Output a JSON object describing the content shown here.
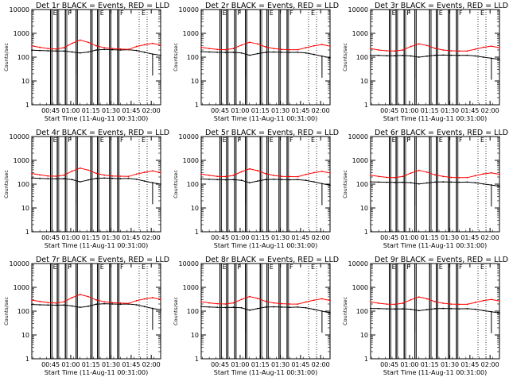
{
  "window": {
    "title": ""
  },
  "colors": {
    "events": "#000000",
    "lld": "#ff0000",
    "axes": "#000000",
    "background": "#ffffff"
  },
  "shared": {
    "ylabel": "Counts/sec",
    "xlabel": "Start Time (11-Aug-11 00:31:00)",
    "xtick_labels": [
      "00:45",
      "01:00",
      "01:15",
      "01:30",
      "01:45",
      "02:00"
    ],
    "ytick_labels": [
      "1",
      "10",
      "100",
      "1000",
      "10000"
    ],
    "flag_letters": [
      "E",
      "F"
    ]
  },
  "chart_data": [
    {
      "type": "line",
      "title": "Det 1r BLACK = Events, RED = LLD",
      "xlabel": "Start Time (11-Aug-11 00:31:00)",
      "ylabel": "Counts/sec",
      "yscale": "log",
      "ylim": [
        1,
        10000
      ],
      "xlim_minutes_after_start": [
        0,
        96
      ],
      "x_minutes_after_start": [
        0,
        6,
        12,
        18,
        24,
        30,
        36,
        42,
        48,
        54,
        60,
        66,
        72,
        78,
        84,
        90,
        96
      ],
      "series": [
        {
          "name": "Events",
          "color": "#000000",
          "values": [
            195,
            190,
            185,
            180,
            180,
            165,
            150,
            165,
            200,
            210,
            205,
            200,
            205,
            190,
            160,
            135,
            120
          ]
        },
        {
          "name": "LLD",
          "color": "#ff0000",
          "values": [
            300,
            260,
            230,
            220,
            250,
            380,
            520,
            420,
            300,
            250,
            230,
            220,
            210,
            280,
            330,
            380,
            320
          ]
        }
      ],
      "vertical_markers_minutes": [
        14,
        19,
        25,
        33,
        44,
        49,
        58,
        64,
        80
      ]
    },
    {
      "type": "line",
      "title": "Det 2r BLACK = Events, RED = LLD",
      "xlabel": "Start Time (11-Aug-11 00:31:00)",
      "ylabel": "Counts/sec",
      "yscale": "log",
      "ylim": [
        1,
        10000
      ],
      "xlim_minutes_after_start": [
        0,
        96
      ],
      "x_minutes_after_start": [
        0,
        6,
        12,
        18,
        24,
        30,
        36,
        42,
        48,
        54,
        60,
        66,
        72,
        78,
        84,
        90,
        96
      ],
      "series": [
        {
          "name": "Events",
          "color": "#000000",
          "values": [
            170,
            165,
            160,
            158,
            160,
            150,
            120,
            140,
            160,
            165,
            160,
            158,
            160,
            150,
            130,
            110,
            95
          ]
        },
        {
          "name": "LLD",
          "color": "#ff0000",
          "values": [
            260,
            230,
            210,
            205,
            230,
            320,
            420,
            360,
            270,
            230,
            210,
            205,
            205,
            250,
            300,
            340,
            290
          ]
        }
      ],
      "vertical_markers_minutes": [
        14,
        19,
        25,
        33,
        44,
        49,
        58,
        64,
        80
      ]
    },
    {
      "type": "line",
      "title": "Det 3r BLACK = Events, RED = LLD",
      "xlabel": "Start Time (11-Aug-11 00:31:00)",
      "ylabel": "Counts/sec",
      "yscale": "log",
      "ylim": [
        1,
        10000
      ],
      "xlim_minutes_after_start": [
        0,
        96
      ],
      "x_minutes_after_start": [
        0,
        6,
        12,
        18,
        24,
        30,
        36,
        42,
        48,
        54,
        60,
        66,
        72,
        78,
        84,
        90,
        96
      ],
      "series": [
        {
          "name": "Events",
          "color": "#000000",
          "values": [
            120,
            118,
            115,
            115,
            118,
            112,
            100,
            110,
            120,
            122,
            120,
            118,
            120,
            112,
            100,
            90,
            80
          ]
        },
        {
          "name": "LLD",
          "color": "#ff0000",
          "values": [
            230,
            200,
            185,
            180,
            200,
            280,
            360,
            310,
            235,
            200,
            185,
            180,
            180,
            215,
            260,
            290,
            250
          ]
        }
      ],
      "vertical_markers_minutes": [
        14,
        19,
        25,
        33,
        44,
        49,
        58,
        64,
        80
      ]
    },
    {
      "type": "line",
      "title": "Det 4r BLACK = Events, RED = LLD",
      "xlabel": "Start Time (11-Aug-11 00:31:00)",
      "ylabel": "Counts/sec",
      "yscale": "log",
      "ylim": [
        1,
        10000
      ],
      "xlim_minutes_after_start": [
        0,
        96
      ],
      "x_minutes_after_start": [
        0,
        6,
        12,
        18,
        24,
        30,
        36,
        42,
        48,
        54,
        60,
        66,
        72,
        78,
        84,
        90,
        96
      ],
      "series": [
        {
          "name": "Events",
          "color": "#000000",
          "values": [
            180,
            175,
            170,
            168,
            170,
            155,
            125,
            150,
            175,
            180,
            175,
            170,
            175,
            160,
            135,
            115,
            100
          ]
        },
        {
          "name": "LLD",
          "color": "#ff0000",
          "values": [
            280,
            245,
            220,
            215,
            240,
            350,
            470,
            390,
            285,
            240,
            220,
            215,
            210,
            265,
            315,
            360,
            305
          ]
        }
      ],
      "vertical_markers_minutes": [
        14,
        19,
        25,
        33,
        44,
        49,
        58,
        64,
        80
      ]
    },
    {
      "type": "line",
      "title": "Det 5r BLACK = Events, RED = LLD",
      "xlabel": "Start Time (11-Aug-11 00:31:00)",
      "ylabel": "Counts/sec",
      "yscale": "log",
      "ylim": [
        1,
        10000
      ],
      "xlim_minutes_after_start": [
        0,
        96
      ],
      "x_minutes_after_start": [
        0,
        6,
        12,
        18,
        24,
        30,
        36,
        42,
        48,
        54,
        60,
        66,
        72,
        78,
        84,
        90,
        96
      ],
      "series": [
        {
          "name": "Events",
          "color": "#000000",
          "values": [
            165,
            160,
            155,
            152,
            155,
            145,
            115,
            135,
            155,
            160,
            155,
            152,
            155,
            145,
            125,
            105,
            90
          ]
        },
        {
          "name": "LLD",
          "color": "#ff0000",
          "values": [
            265,
            235,
            212,
            208,
            232,
            330,
            440,
            370,
            275,
            232,
            212,
            208,
            206,
            255,
            305,
            345,
            295
          ]
        }
      ],
      "vertical_markers_minutes": [
        14,
        19,
        25,
        33,
        44,
        49,
        58,
        64,
        80
      ]
    },
    {
      "type": "line",
      "title": "Det 6r BLACK = Events, RED = LLD",
      "xlabel": "Start Time (11-Aug-11 00:31:00)",
      "ylabel": "Counts/sec",
      "yscale": "log",
      "ylim": [
        1,
        10000
      ],
      "xlim_minutes_after_start": [
        0,
        96
      ],
      "x_minutes_after_start": [
        0,
        6,
        12,
        18,
        24,
        30,
        36,
        42,
        48,
        54,
        60,
        66,
        72,
        78,
        84,
        90,
        96
      ],
      "series": [
        {
          "name": "Events",
          "color": "#000000",
          "values": [
            125,
            122,
            120,
            118,
            120,
            115,
            102,
            112,
            122,
            125,
            122,
            120,
            122,
            115,
            102,
            92,
            82
          ]
        },
        {
          "name": "LLD",
          "color": "#ff0000",
          "values": [
            240,
            210,
            192,
            188,
            210,
            290,
            380,
            320,
            245,
            210,
            192,
            188,
            188,
            225,
            270,
            300,
            260
          ]
        }
      ],
      "vertical_markers_minutes": [
        14,
        19,
        25,
        33,
        44,
        49,
        58,
        64,
        80
      ]
    },
    {
      "type": "line",
      "title": "Det 7r BLACK = Events, RED = LLD",
      "xlabel": "Start Time (11-Aug-11 00:31:00)",
      "ylabel": "Counts/sec",
      "yscale": "log",
      "ylim": [
        1,
        10000
      ],
      "xlim_minutes_after_start": [
        0,
        96
      ],
      "x_minutes_after_start": [
        0,
        6,
        12,
        18,
        24,
        30,
        36,
        42,
        48,
        54,
        60,
        66,
        72,
        78,
        84,
        90,
        96
      ],
      "series": [
        {
          "name": "Events",
          "color": "#000000",
          "values": [
            190,
            185,
            180,
            178,
            180,
            165,
            145,
            160,
            195,
            205,
            200,
            195,
            200,
            185,
            155,
            130,
            115
          ]
        },
        {
          "name": "LLD",
          "color": "#ff0000",
          "values": [
            290,
            255,
            228,
            220,
            248,
            370,
            500,
            410,
            295,
            248,
            228,
            220,
            210,
            275,
            325,
            370,
            315
          ]
        }
      ],
      "vertical_markers_minutes": [
        14,
        19,
        25,
        33,
        44,
        49,
        58,
        64,
        80
      ]
    },
    {
      "type": "line",
      "title": "Det 8r BLACK = Events, RED = LLD",
      "xlabel": "Start Time (11-Aug-11 00:31:00)",
      "ylabel": "Counts/sec",
      "yscale": "log",
      "ylim": [
        1,
        10000
      ],
      "xlim_minutes_after_start": [
        0,
        96
      ],
      "x_minutes_after_start": [
        0,
        6,
        12,
        18,
        24,
        30,
        36,
        42,
        48,
        54,
        60,
        66,
        72,
        78,
        84,
        90,
        96
      ],
      "series": [
        {
          "name": "Events",
          "color": "#000000",
          "values": [
            155,
            150,
            145,
            142,
            145,
            138,
            110,
            128,
            148,
            152,
            148,
            145,
            148,
            138,
            118,
            100,
            85
          ]
        },
        {
          "name": "LLD",
          "color": "#ff0000",
          "values": [
            250,
            222,
            205,
            200,
            222,
            310,
            410,
            345,
            258,
            222,
            205,
            200,
            198,
            242,
            290,
            330,
            280
          ]
        }
      ],
      "vertical_markers_minutes": [
        14,
        19,
        25,
        33,
        44,
        49,
        58,
        64,
        80
      ]
    },
    {
      "type": "line",
      "title": "Det 9r BLACK = Events, RED = LLD",
      "xlabel": "Start Time (11-Aug-11 00:31:00)",
      "ylabel": "Counts/sec",
      "yscale": "log",
      "ylim": [
        1,
        10000
      ],
      "xlim_minutes_after_start": [
        0,
        96
      ],
      "x_minutes_after_start": [
        0,
        6,
        12,
        18,
        24,
        30,
        36,
        42,
        48,
        54,
        60,
        66,
        72,
        78,
        84,
        90,
        96
      ],
      "series": [
        {
          "name": "Events",
          "color": "#000000",
          "values": [
            130,
            128,
            125,
            123,
            125,
            120,
            105,
            116,
            127,
            130,
            127,
            125,
            127,
            120,
            106,
            95,
            84
          ]
        },
        {
          "name": "LLD",
          "color": "#ff0000",
          "values": [
            245,
            215,
            198,
            193,
            215,
            300,
            395,
            330,
            250,
            215,
            198,
            193,
            193,
            232,
            278,
            310,
            268
          ]
        }
      ],
      "vertical_markers_minutes": [
        14,
        19,
        25,
        33,
        44,
        49,
        58,
        64,
        80
      ]
    }
  ]
}
